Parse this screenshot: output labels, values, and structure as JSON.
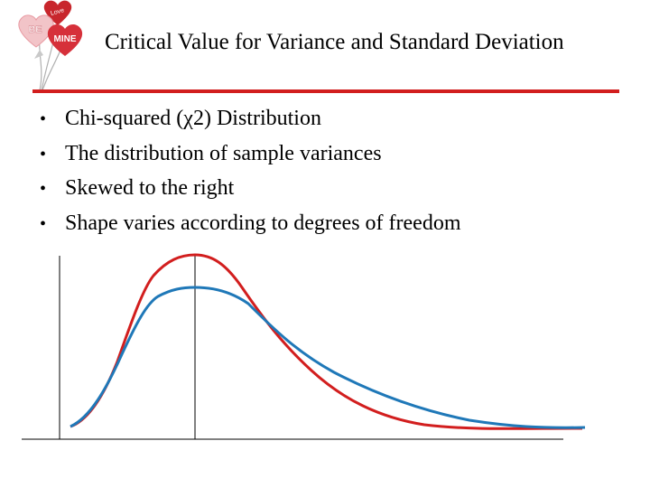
{
  "slide": {
    "title": "Critical Value for Variance and Standard Deviation",
    "bullets": [
      {
        "marker": "•",
        "text": "Chi-squared (χ2) Distribution"
      },
      {
        "marker": "•",
        "text": "The distribution of sample variances"
      },
      {
        "marker": "•",
        "text": "Skewed to the right"
      },
      {
        "marker": "•",
        "text": "Shape varies according to degrees of freedom"
      }
    ],
    "decoration": {
      "icon": "valentine-balloons-icon",
      "balloon_texts": [
        "BE",
        "MINE",
        "Love"
      ]
    },
    "colors": {
      "accent_rule": "#d21e1e"
    }
  },
  "chart_data": {
    "type": "line",
    "title": "",
    "xlabel": "",
    "ylabel": "",
    "ticks": "none",
    "grid": false,
    "legend": "none",
    "series": [
      {
        "color": "#d21e1e",
        "shape": "right-skewed, taller and narrower peak"
      },
      {
        "color": "#1f78b8",
        "shape": "right-skewed, lower and wider peak"
      }
    ]
  }
}
